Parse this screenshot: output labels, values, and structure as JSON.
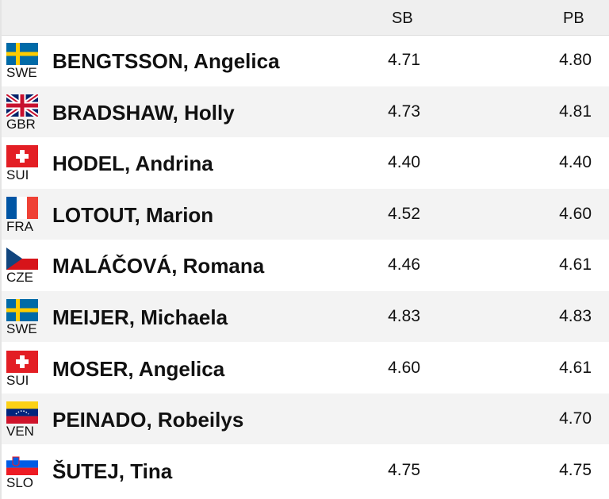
{
  "table": {
    "header": [
      "SB",
      "PB"
    ],
    "rows": [
      {
        "country": "SWE",
        "name": "BENGTSSON, Angelica",
        "sb": "4.71",
        "pb": "4.80"
      },
      {
        "country": "GBR",
        "name": "BRADSHAW, Holly",
        "sb": "4.73",
        "pb": "4.81"
      },
      {
        "country": "SUI",
        "name": "HODEL, Andrina",
        "sb": "4.40",
        "pb": "4.40"
      },
      {
        "country": "FRA",
        "name": "LOTOUT, Marion",
        "sb": "4.52",
        "pb": "4.60"
      },
      {
        "country": "CZE",
        "name": "MALÁČOVÁ, Romana",
        "sb": "4.46",
        "pb": "4.61"
      },
      {
        "country": "SWE",
        "name": "MEIJER, Michaela",
        "sb": "4.83",
        "pb": "4.83"
      },
      {
        "country": "SUI",
        "name": "MOSER, Angelica",
        "sb": "4.60",
        "pb": "4.61"
      },
      {
        "country": "VEN",
        "name": "PEINADO, Robeilys",
        "sb": null,
        "pb": "4.70"
      },
      {
        "country": "SLO",
        "name": "ŠUTEJ, Tina",
        "sb": "4.75",
        "pb": "4.75"
      }
    ]
  }
}
